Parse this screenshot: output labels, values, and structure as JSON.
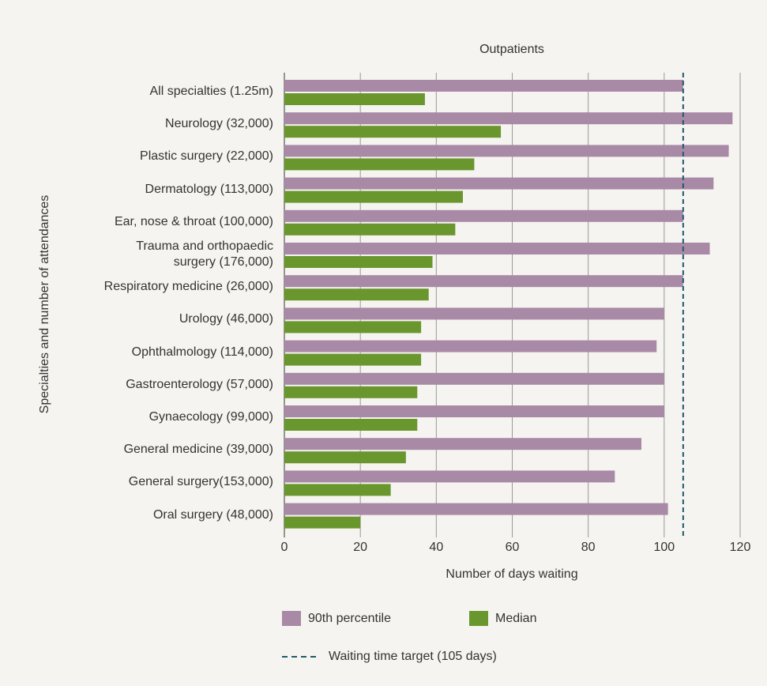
{
  "chart_data": {
    "type": "bar",
    "orientation": "horizontal",
    "title": "Outpatients",
    "ylabel": "Specialties and number of attendances",
    "xlabel": "Number of days waiting",
    "categories": [
      "All specialties (1.25m)",
      "Neurology (32,000)",
      "Plastic surgery (22,000)",
      "Dermatology (113,000)",
      "Ear, nose & throat (100,000)",
      "Trauma and orthopaedic\nsurgery (176,000)",
      "Respiratory medicine (26,000)",
      "Urology (46,000)",
      "Ophthalmology (114,000)",
      "Gastroenterology (57,000)",
      "Gynaecology (99,000)",
      "General medicine (39,000)",
      "General surgery(153,000)",
      "Oral surgery (48,000)"
    ],
    "series": [
      {
        "name": "90th percentile",
        "color": "#a889a6",
        "values": [
          105,
          118,
          117,
          113,
          105,
          112,
          105,
          100,
          98,
          100,
          100,
          94,
          87,
          101
        ]
      },
      {
        "name": "Median",
        "color": "#6a962e",
        "values": [
          37,
          57,
          50,
          47,
          45,
          39,
          38,
          36,
          36,
          35,
          35,
          32,
          28,
          20
        ]
      }
    ],
    "target": {
      "value": 105,
      "label": "Waiting time target (105 days)",
      "color": "#1f5a6e"
    },
    "xlim": [
      0,
      120
    ],
    "xticks": [
      0,
      20,
      40,
      60,
      80,
      100,
      120
    ],
    "grid": true
  }
}
